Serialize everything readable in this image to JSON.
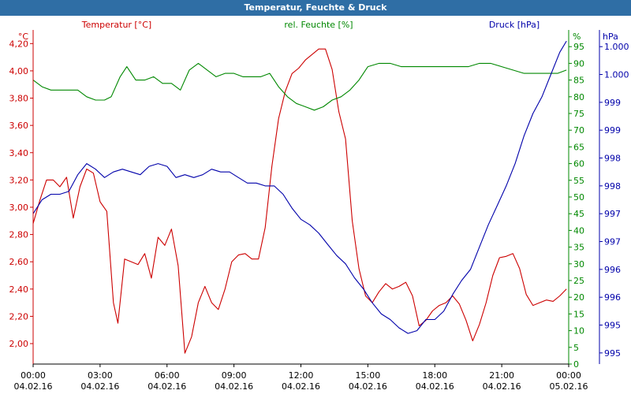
{
  "window": {
    "title": "Temperatur, Feuchte & Druck"
  },
  "chart_data": {
    "type": "line",
    "title": "Temperatur, Feuchte & Druck",
    "grid": true,
    "x_ticks": [
      {
        "time": "00:00",
        "date": "04.02.16"
      },
      {
        "time": "03:00",
        "date": "04.02.16"
      },
      {
        "time": "06:00",
        "date": "04.02.16"
      },
      {
        "time": "09:00",
        "date": "04.02.16"
      },
      {
        "time": "12:00",
        "date": "04.02.16"
      },
      {
        "time": "15:00",
        "date": "04.02.16"
      },
      {
        "time": "18:00",
        "date": "04.02.16"
      },
      {
        "time": "21:00",
        "date": "04.02.16"
      },
      {
        "time": "00:00",
        "date": "05.02.16"
      }
    ],
    "x_range_hours": [
      0,
      24
    ],
    "axes": {
      "temperature": {
        "unit_label": "°C",
        "ylim": [
          1.85,
          4.3
        ],
        "ticks": [
          "4,20",
          "4,00",
          "3,80",
          "3,60",
          "3,40",
          "3,20",
          "3,00",
          "2,80",
          "2,60",
          "2,40",
          "2,20",
          "2,00"
        ],
        "tick_values": [
          4.2,
          4.0,
          3.8,
          3.6,
          3.4,
          3.2,
          3.0,
          2.8,
          2.6,
          2.4,
          2.2,
          2.0
        ],
        "color": "#cc0000"
      },
      "humidity": {
        "unit_label": "%",
        "ylim": [
          0,
          100
        ],
        "ticks": [
          "95",
          "90",
          "85",
          "80",
          "75",
          "70",
          "65",
          "60",
          "55",
          "50",
          "45",
          "40",
          "35",
          "30",
          "25",
          "20",
          "15",
          "10",
          "5",
          "0"
        ],
        "tick_values": [
          95,
          90,
          85,
          80,
          75,
          70,
          65,
          60,
          55,
          50,
          45,
          40,
          35,
          30,
          25,
          20,
          15,
          10,
          5,
          0
        ],
        "color": "#008800"
      },
      "pressure": {
        "unit_label": "hPa",
        "ylim": [
          994.5,
          1000.5
        ],
        "ticks": [
          "1.000",
          "1.000",
          "999",
          "999",
          "998",
          "998",
          "997",
          "997",
          "996",
          "996",
          "995",
          "995"
        ],
        "tick_values": [
          1000.2,
          999.7,
          999.2,
          998.7,
          998.2,
          997.7,
          997.2,
          996.7,
          996.2,
          995.7,
          995.2,
          994.7
        ],
        "color": "#0000aa"
      }
    },
    "series": [
      {
        "name": "Temperatur [°C]",
        "axis": "temperature",
        "color": "#cc0000",
        "x": [
          0,
          0.3,
          0.6,
          0.9,
          1.2,
          1.5,
          1.8,
          2.1,
          2.4,
          2.7,
          3.0,
          3.3,
          3.6,
          3.8,
          4.1,
          4.4,
          4.7,
          5.0,
          5.3,
          5.6,
          5.9,
          6.2,
          6.5,
          6.8,
          7.1,
          7.4,
          7.7,
          8.0,
          8.3,
          8.6,
          8.9,
          9.2,
          9.5,
          9.8,
          10.1,
          10.4,
          10.7,
          11.0,
          11.3,
          11.6,
          11.9,
          12.2,
          12.5,
          12.8,
          13.1,
          13.4,
          13.7,
          14.0,
          14.3,
          14.6,
          14.9,
          15.2,
          15.5,
          15.8,
          16.1,
          16.4,
          16.7,
          17.0,
          17.3,
          17.6,
          17.9,
          18.2,
          18.5,
          18.8,
          19.1,
          19.4,
          19.7,
          20.0,
          20.3,
          20.6,
          20.9,
          21.2,
          21.5,
          21.8,
          22.1,
          22.4,
          22.7,
          23.0,
          23.3,
          23.6,
          23.9
        ],
        "y": [
          2.88,
          3.05,
          3.2,
          3.2,
          3.15,
          3.22,
          2.92,
          3.15,
          3.28,
          3.25,
          3.04,
          2.97,
          2.3,
          2.15,
          2.62,
          2.6,
          2.58,
          2.66,
          2.48,
          2.78,
          2.72,
          2.84,
          2.57,
          1.93,
          2.05,
          2.3,
          2.42,
          2.3,
          2.25,
          2.4,
          2.6,
          2.65,
          2.66,
          2.62,
          2.62,
          2.85,
          3.3,
          3.65,
          3.85,
          3.98,
          4.02,
          4.08,
          4.12,
          4.16,
          4.16,
          4.01,
          3.7,
          3.5,
          2.9,
          2.55,
          2.35,
          2.3,
          2.38,
          2.44,
          2.4,
          2.42,
          2.45,
          2.35,
          2.13,
          2.17,
          2.24,
          2.28,
          2.3,
          2.35,
          2.29,
          2.17,
          2.02,
          2.14,
          2.3,
          2.5,
          2.63,
          2.64,
          2.66,
          2.55,
          2.36,
          2.28,
          2.3,
          2.32,
          2.31,
          2.35,
          2.4
        ]
      },
      {
        "name": "rel. Feuchte [%]",
        "axis": "humidity",
        "color": "#008800",
        "x": [
          0,
          0.4,
          0.8,
          1.2,
          1.6,
          2.0,
          2.4,
          2.8,
          3.2,
          3.5,
          3.9,
          4.2,
          4.6,
          5.0,
          5.4,
          5.8,
          6.2,
          6.6,
          7.0,
          7.4,
          7.8,
          8.2,
          8.6,
          9.0,
          9.4,
          9.8,
          10.2,
          10.6,
          11.0,
          11.4,
          11.8,
          12.2,
          12.6,
          13.0,
          13.4,
          13.8,
          14.2,
          14.6,
          15.0,
          15.5,
          16.0,
          16.5,
          17.0,
          17.5,
          18.0,
          18.5,
          19.0,
          19.5,
          20.0,
          20.5,
          21.0,
          21.5,
          22.0,
          22.5,
          23.0,
          23.5,
          23.9
        ],
        "y": [
          85,
          83,
          82,
          82,
          82,
          82,
          80,
          79,
          79,
          80,
          86,
          89,
          85,
          85,
          86,
          84,
          84,
          82,
          88,
          90,
          88,
          86,
          87,
          87,
          86,
          86,
          86,
          87,
          83,
          80,
          78,
          77,
          76,
          77,
          79,
          80,
          82,
          85,
          89,
          90,
          90,
          89,
          89,
          89,
          89,
          89,
          89,
          89,
          90,
          90,
          89,
          88,
          87,
          87,
          87,
          87,
          88
        ]
      },
      {
        "name": "Druck [hPa]",
        "axis": "pressure",
        "color": "#0000aa",
        "x": [
          0,
          0.4,
          0.8,
          1.2,
          1.6,
          2.0,
          2.4,
          2.8,
          3.2,
          3.6,
          4.0,
          4.4,
          4.8,
          5.2,
          5.6,
          6.0,
          6.4,
          6.8,
          7.2,
          7.6,
          8.0,
          8.4,
          8.8,
          9.2,
          9.6,
          10.0,
          10.4,
          10.8,
          11.2,
          11.6,
          12.0,
          12.4,
          12.8,
          13.2,
          13.6,
          14.0,
          14.4,
          14.8,
          15.2,
          15.6,
          16.0,
          16.4,
          16.8,
          17.2,
          17.6,
          18.0,
          18.4,
          18.8,
          19.2,
          19.6,
          20.0,
          20.4,
          20.8,
          21.2,
          21.6,
          22.0,
          22.4,
          22.8,
          23.2,
          23.6,
          23.9
        ],
        "y": [
          997.2,
          997.45,
          997.55,
          997.55,
          997.6,
          997.9,
          998.1,
          998.0,
          997.85,
          997.95,
          998.0,
          997.95,
          997.9,
          998.05,
          998.1,
          998.05,
          997.85,
          997.9,
          997.85,
          997.9,
          998.0,
          997.95,
          997.95,
          997.85,
          997.75,
          997.75,
          997.7,
          997.7,
          997.55,
          997.3,
          997.1,
          997.0,
          996.85,
          996.65,
          996.45,
          996.3,
          996.05,
          995.85,
          995.6,
          995.4,
          995.3,
          995.15,
          995.05,
          995.1,
          995.3,
          995.3,
          995.45,
          995.75,
          996.0,
          996.2,
          996.6,
          997.0,
          997.35,
          997.7,
          998.1,
          998.6,
          999.0,
          999.3,
          999.7,
          1000.1,
          1000.3
        ]
      }
    ]
  }
}
